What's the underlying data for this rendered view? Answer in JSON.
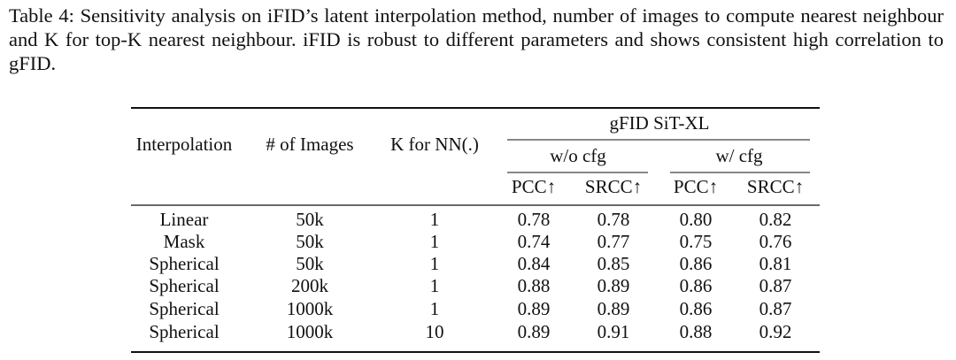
{
  "caption": "Table 4: Sensitivity analysis on iFID’s latent interpolation method, number of images to compute nearest neighbour and K for top-K nearest neighbour. iFID is robust to different parameters and shows consistent high correlation to gFID.",
  "table": {
    "group_header": "gFID SiT-XL",
    "subgroups": [
      "w/o cfg",
      "w/ cfg"
    ],
    "columns": [
      "Interpolation",
      "# of Images",
      "K for NN(.)",
      "PCC↑",
      "SRCC↑",
      "PCC↑",
      "SRCC↑"
    ],
    "rows": [
      [
        "Linear",
        "50k",
        "1",
        "0.78",
        "0.78",
        "0.80",
        "0.82"
      ],
      [
        "Mask",
        "50k",
        "1",
        "0.74",
        "0.77",
        "0.75",
        "0.76"
      ],
      [
        "Spherical",
        "50k",
        "1",
        "0.84",
        "0.85",
        "0.86",
        "0.81"
      ],
      [
        "Spherical",
        "200k",
        "1",
        "0.88",
        "0.89",
        "0.86",
        "0.87"
      ],
      [
        "Spherical",
        "1000k",
        "1",
        "0.89",
        "0.89",
        "0.86",
        "0.87"
      ],
      [
        "Spherical",
        "1000k",
        "10",
        "0.89",
        "0.91",
        "0.88",
        "0.92"
      ]
    ]
  }
}
